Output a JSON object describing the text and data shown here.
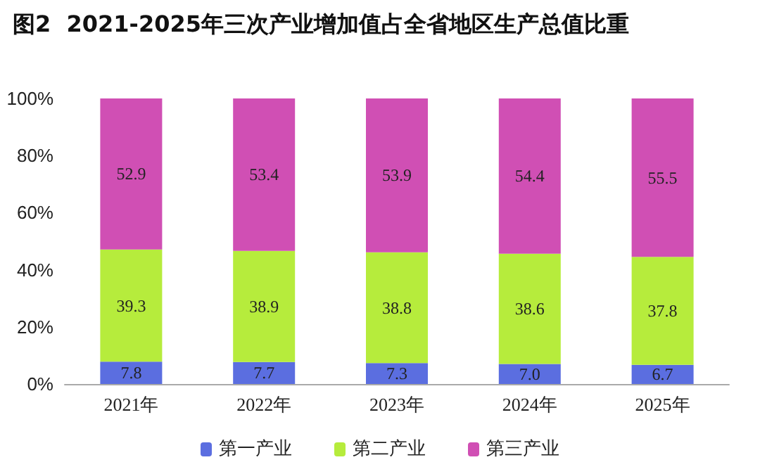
{
  "chart_data": {
    "type": "bar",
    "title": "图2  2021-2025年三次产业增加值占全省地区生产总值比重",
    "categories": [
      "2021年",
      "2022年",
      "2023年",
      "2024年",
      "2025年"
    ],
    "series": [
      {
        "name": "第一产业",
        "color": "#5b6ee0",
        "values": [
          7.8,
          7.7,
          7.3,
          7.0,
          6.7
        ],
        "value_labels": [
          "7.8",
          "7.7",
          "7.3",
          "7.0",
          "6.7"
        ]
      },
      {
        "name": "第二产业",
        "color": "#b6ec3c",
        "values": [
          39.3,
          38.9,
          38.8,
          38.6,
          37.8
        ],
        "value_labels": [
          "39.3",
          "38.9",
          "38.8",
          "38.6",
          "37.8"
        ]
      },
      {
        "name": "第三产业",
        "color": "#d04fb4",
        "values": [
          52.9,
          53.4,
          53.9,
          54.4,
          55.5
        ],
        "value_labels": [
          "52.9",
          "53.4",
          "53.9",
          "54.4",
          "55.5"
        ]
      }
    ],
    "stacked": true,
    "ylim": [
      0,
      100
    ],
    "yticks": [
      {
        "value": 0,
        "label": "0%"
      },
      {
        "value": 20,
        "label": "20%"
      },
      {
        "value": 40,
        "label": "40%"
      },
      {
        "value": 60,
        "label": "60%"
      },
      {
        "value": 80,
        "label": "80%"
      },
      {
        "value": 100,
        "label": "100%"
      }
    ],
    "grid": false,
    "legend": "bottom"
  }
}
